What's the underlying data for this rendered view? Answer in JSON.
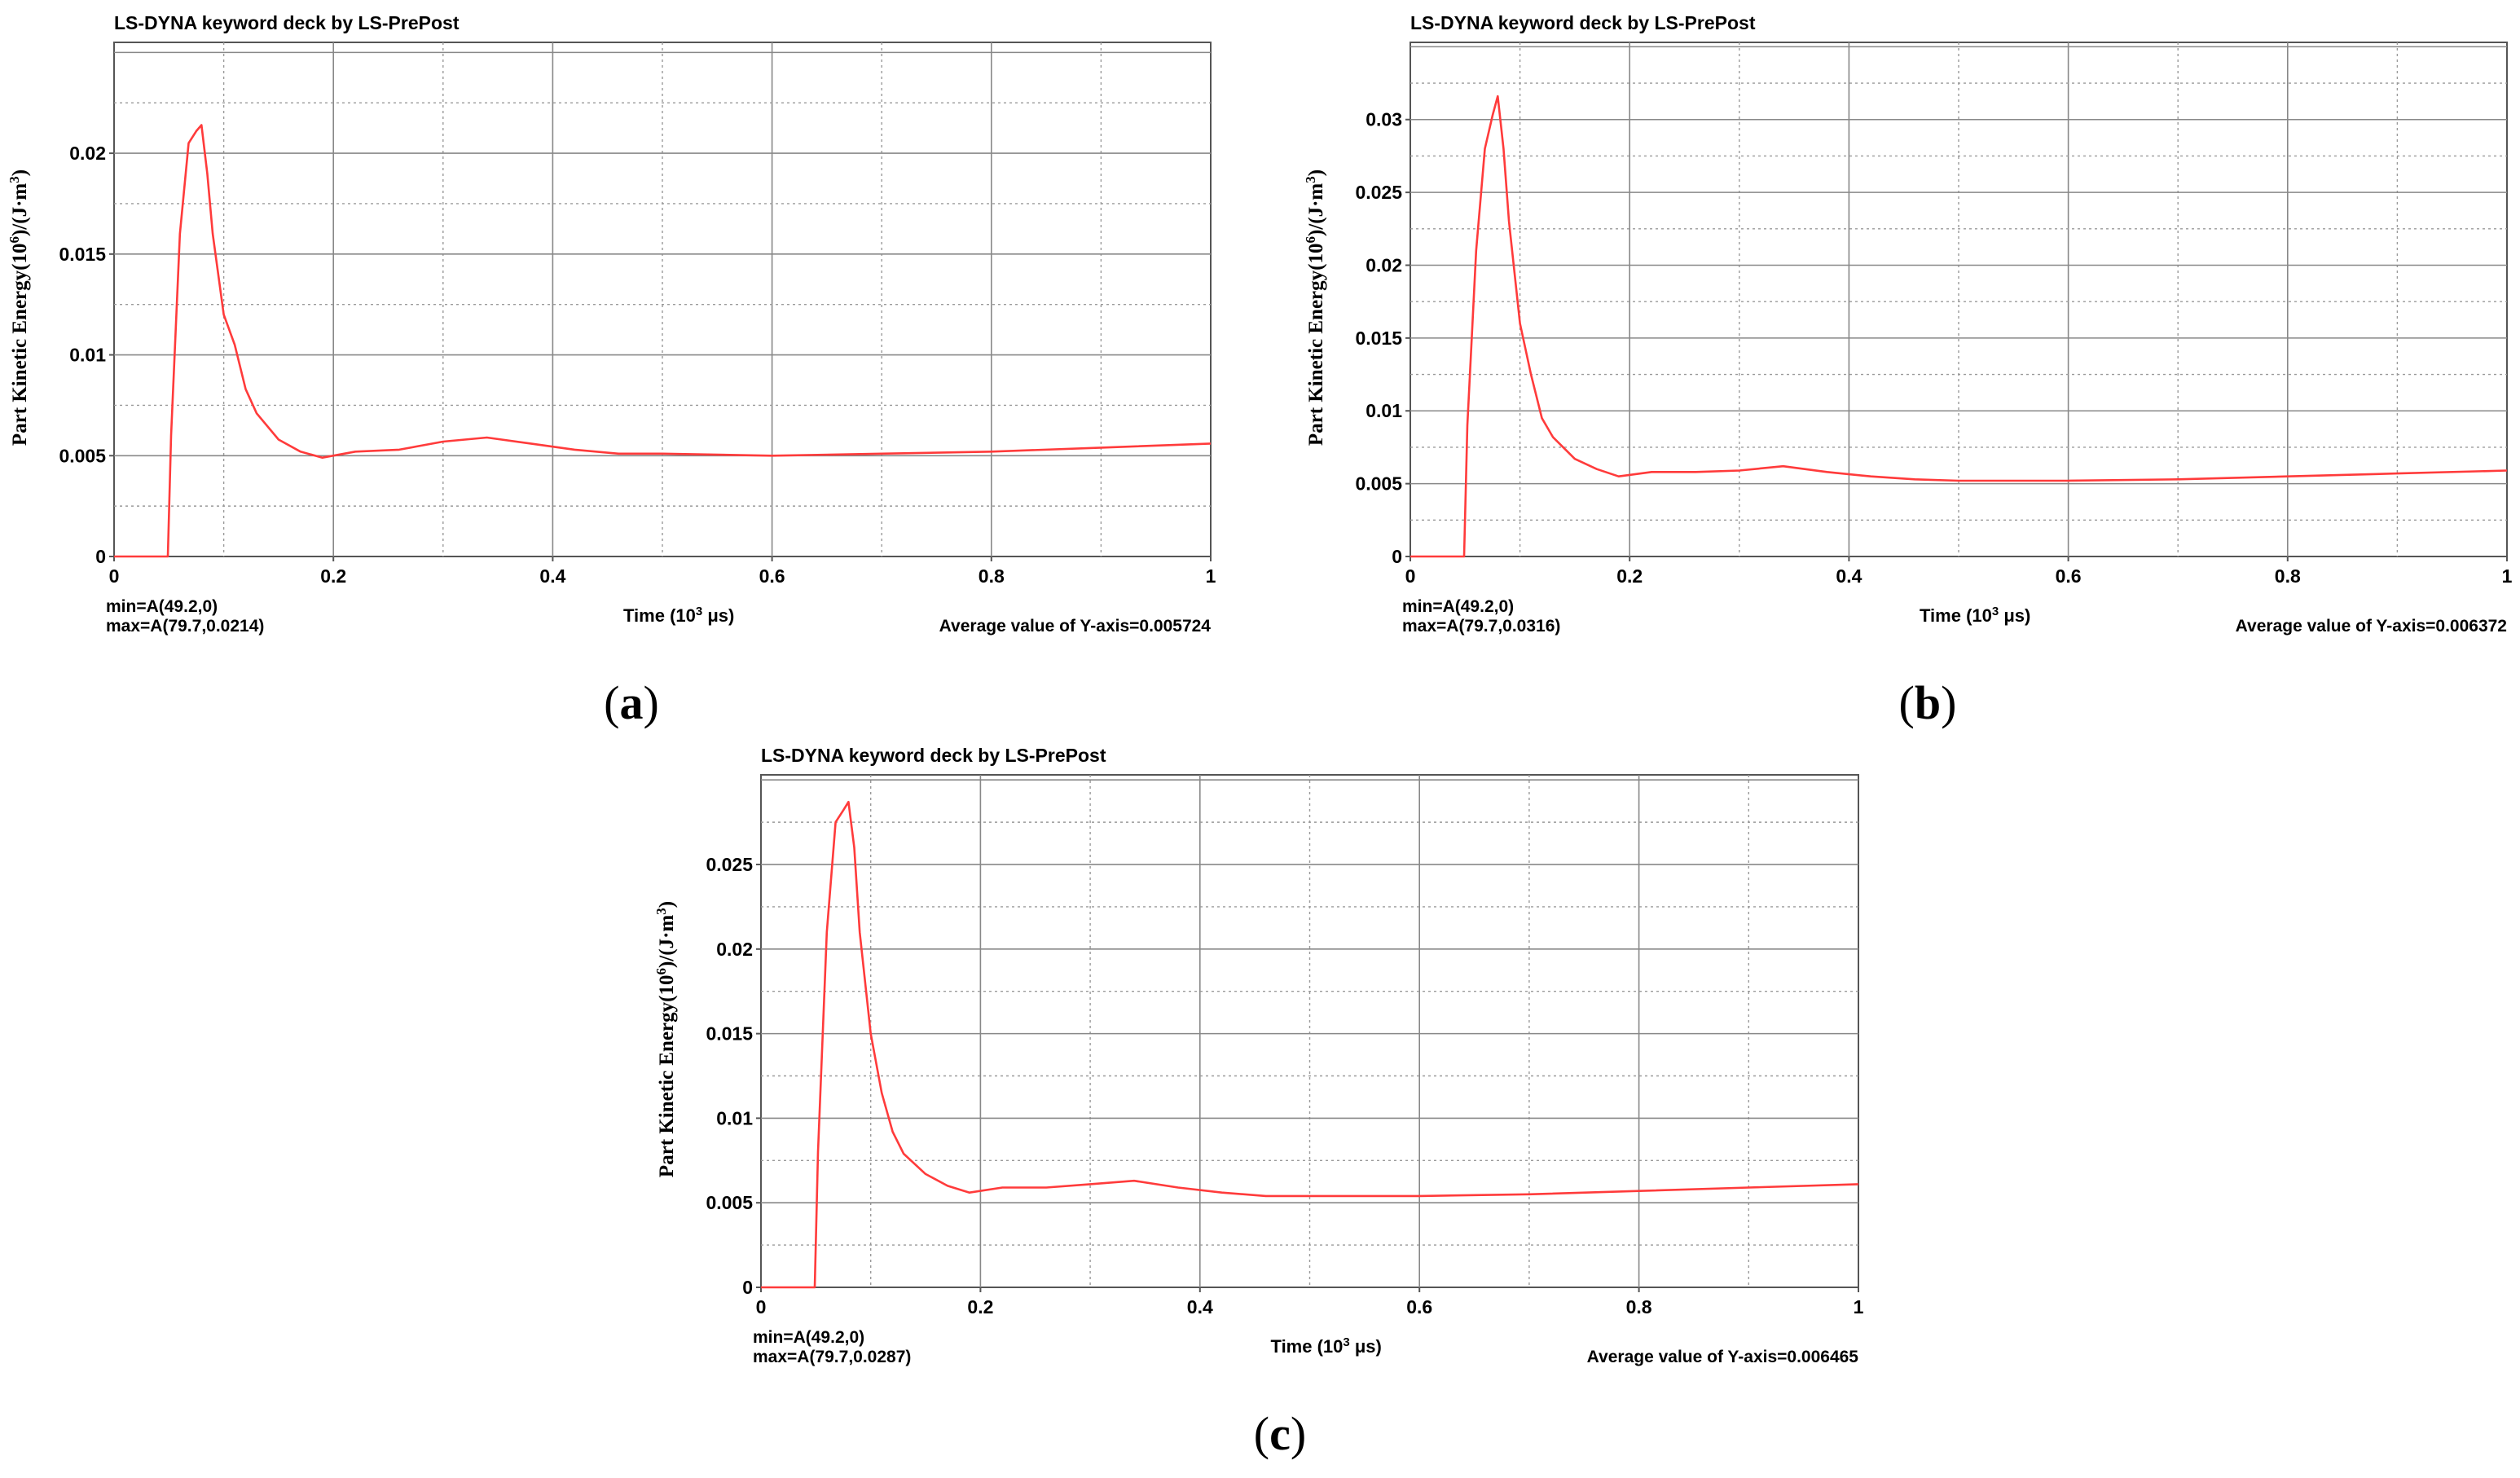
{
  "figure": {
    "panels": [
      "a",
      "b",
      "c"
    ]
  },
  "chart_data": [
    {
      "type": "line",
      "panel_label": "a",
      "title": "LS-DYNA keyword deck by LS-PrePost",
      "xlabel": "Time (10³ μs)",
      "ylabel": "Part Kinetic Energy(10⁶)/(J·m³)",
      "xlim": [
        0,
        1
      ],
      "ylim": [
        0,
        0.0255
      ],
      "xticks": [
        "0",
        "0.2",
        "0.4",
        "0.6",
        "0.8",
        "1"
      ],
      "xtick_values": [
        0,
        0.2,
        0.4,
        0.6,
        0.8,
        1
      ],
      "yticks": [
        "0",
        "0.005",
        "0.01",
        "0.015",
        "0.02"
      ],
      "ytick_values": [
        0,
        0.005,
        0.01,
        0.015,
        0.02
      ],
      "grid": true,
      "line_color": "#ff3b3b",
      "min_text": "min=A(49.2,0)",
      "max_text": "max=A(79.7,0.0214)",
      "average_text": "Average value of Y-axis=0.005724",
      "x": [
        0,
        0.049,
        0.052,
        0.06,
        0.068,
        0.075,
        0.0797,
        0.085,
        0.09,
        0.1,
        0.11,
        0.12,
        0.13,
        0.15,
        0.17,
        0.19,
        0.22,
        0.26,
        0.3,
        0.34,
        0.38,
        0.42,
        0.46,
        0.5,
        0.6,
        0.7,
        0.8,
        0.9,
        1.0
      ],
      "y": [
        0,
        0,
        0.006,
        0.016,
        0.0205,
        0.0211,
        0.0214,
        0.019,
        0.016,
        0.012,
        0.0105,
        0.0083,
        0.0071,
        0.0058,
        0.0052,
        0.0049,
        0.0052,
        0.0053,
        0.0057,
        0.0059,
        0.0056,
        0.0053,
        0.0051,
        0.0051,
        0.005,
        0.0051,
        0.0052,
        0.0054,
        0.0056
      ]
    },
    {
      "type": "line",
      "panel_label": "b",
      "title": "LS-DYNA keyword deck by LS-PrePost",
      "xlabel": "Time (10³ μs)",
      "ylabel": "Part Kinetic Energy(10⁶)/(J·m³)",
      "xlim": [
        0,
        1
      ],
      "ylim": [
        0,
        0.0353
      ],
      "xticks": [
        "0",
        "0.2",
        "0.4",
        "0.6",
        "0.8",
        "1"
      ],
      "xtick_values": [
        0,
        0.2,
        0.4,
        0.6,
        0.8,
        1
      ],
      "yticks": [
        "0",
        "0.005",
        "0.01",
        "0.015",
        "0.02",
        "0.025",
        "0.03"
      ],
      "ytick_values": [
        0,
        0.005,
        0.01,
        0.015,
        0.02,
        0.025,
        0.03
      ],
      "grid": true,
      "line_color": "#ff3b3b",
      "min_text": "min=A(49.2,0)",
      "max_text": "max=A(79.7,0.0316)",
      "average_text": "Average value of Y-axis=0.006372",
      "x": [
        0,
        0.049,
        0.052,
        0.06,
        0.068,
        0.075,
        0.0797,
        0.085,
        0.09,
        0.1,
        0.11,
        0.12,
        0.13,
        0.15,
        0.17,
        0.19,
        0.22,
        0.26,
        0.3,
        0.34,
        0.38,
        0.42,
        0.46,
        0.5,
        0.6,
        0.7,
        0.8,
        0.9,
        1.0
      ],
      "y": [
        0,
        0,
        0.009,
        0.021,
        0.028,
        0.0303,
        0.0316,
        0.028,
        0.023,
        0.016,
        0.0125,
        0.0095,
        0.0082,
        0.0067,
        0.006,
        0.0055,
        0.0058,
        0.0058,
        0.0059,
        0.0062,
        0.0058,
        0.0055,
        0.0053,
        0.0052,
        0.0052,
        0.0053,
        0.0055,
        0.0057,
        0.0059
      ]
    },
    {
      "type": "line",
      "panel_label": "c",
      "title": "LS-DYNA keyword deck by LS-PrePost",
      "xlabel": "Time (10³ μs)",
      "ylabel": "Part Kinetic Energy(10⁶)/(J·m³)",
      "xlim": [
        0,
        1
      ],
      "ylim": [
        0,
        0.0303
      ],
      "xticks": [
        "0",
        "0.2",
        "0.4",
        "0.6",
        "0.8",
        "1"
      ],
      "xtick_values": [
        0,
        0.2,
        0.4,
        0.6,
        0.8,
        1
      ],
      "yticks": [
        "0",
        "0.005",
        "0.01",
        "0.015",
        "0.02",
        "0.025"
      ],
      "ytick_values": [
        0,
        0.005,
        0.01,
        0.015,
        0.02,
        0.025
      ],
      "grid": true,
      "line_color": "#ff3b3b",
      "min_text": "min=A(49.2,0)",
      "max_text": "max=A(79.7,0.0287)",
      "average_text": "Average value of Y-axis=0.006465",
      "x": [
        0,
        0.049,
        0.052,
        0.06,
        0.068,
        0.075,
        0.0797,
        0.085,
        0.09,
        0.1,
        0.11,
        0.12,
        0.13,
        0.15,
        0.17,
        0.19,
        0.22,
        0.26,
        0.3,
        0.34,
        0.38,
        0.42,
        0.46,
        0.5,
        0.6,
        0.7,
        0.8,
        0.9,
        1.0
      ],
      "y": [
        0,
        0,
        0.008,
        0.021,
        0.0275,
        0.0282,
        0.0287,
        0.026,
        0.021,
        0.015,
        0.0115,
        0.0092,
        0.0079,
        0.0067,
        0.006,
        0.0056,
        0.0059,
        0.0059,
        0.0061,
        0.0063,
        0.0059,
        0.0056,
        0.0054,
        0.0054,
        0.0054,
        0.0055,
        0.0057,
        0.0059,
        0.0061
      ]
    }
  ]
}
